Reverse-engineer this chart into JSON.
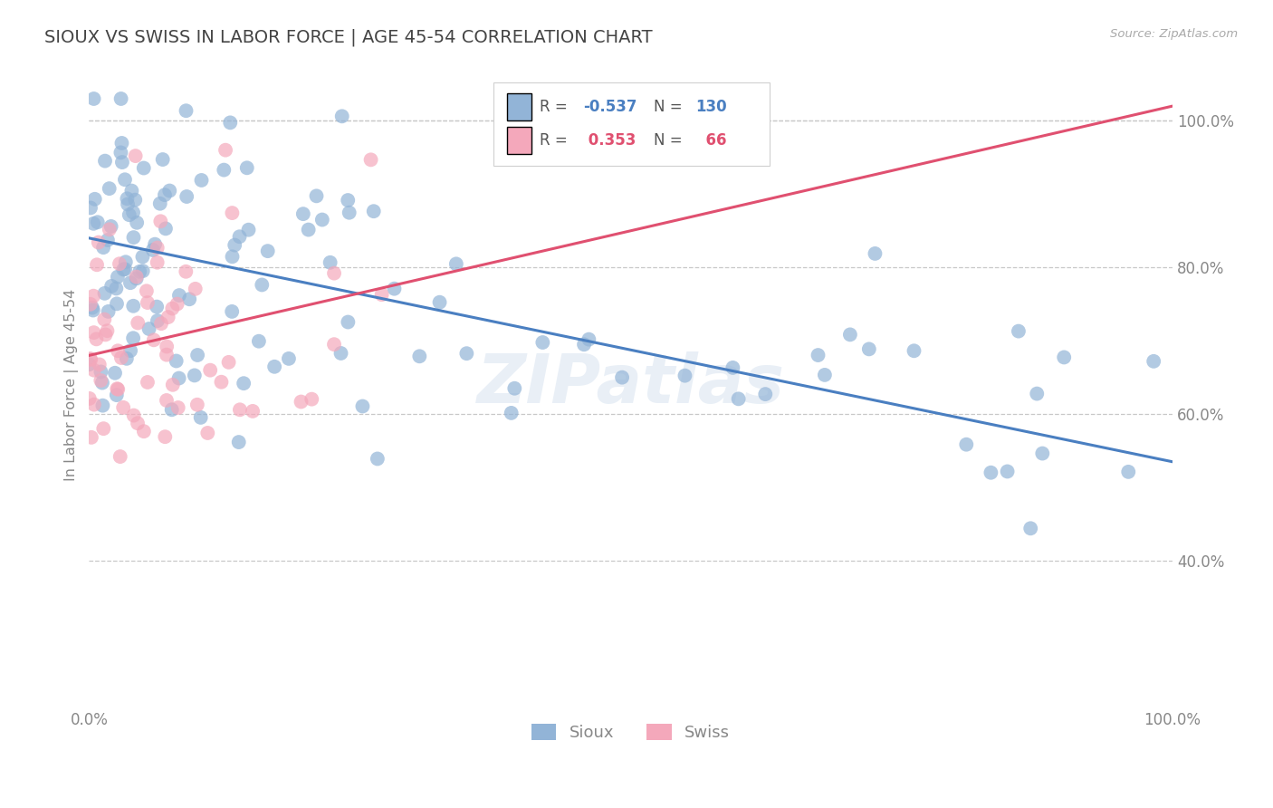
{
  "title": "SIOUX VS SWISS IN LABOR FORCE | AGE 45-54 CORRELATION CHART",
  "source_text": "Source: ZipAtlas.com",
  "ylabel": "In Labor Force | Age 45-54",
  "xlim": [
    0.0,
    1.0
  ],
  "ylim": [
    0.2,
    1.08
  ],
  "y_ticks": [
    0.4,
    0.6,
    0.8,
    1.0
  ],
  "y_tick_labels": [
    "40.0%",
    "60.0%",
    "80.0%",
    "100.0%"
  ],
  "x_ticks": [
    0.0,
    0.1,
    0.2,
    0.3,
    0.4,
    0.5,
    0.6,
    0.7,
    0.8,
    0.9,
    1.0
  ],
  "sioux_color": "#92b4d7",
  "swiss_color": "#f4a8bb",
  "sioux_line_color": "#4a7fc1",
  "swiss_line_color": "#e05070",
  "sioux_R": -0.537,
  "sioux_N": 130,
  "swiss_R": 0.353,
  "swiss_N": 66,
  "watermark": "ZIPatlas",
  "background_color": "#ffffff",
  "grid_color": "#c8c8c8",
  "title_color": "#444444",
  "tick_color": "#888888",
  "legend_label_color": "#555555",
  "sioux_line_y0": 0.84,
  "sioux_line_y1": 0.535,
  "swiss_line_y0": 0.68,
  "swiss_line_y1": 1.02
}
